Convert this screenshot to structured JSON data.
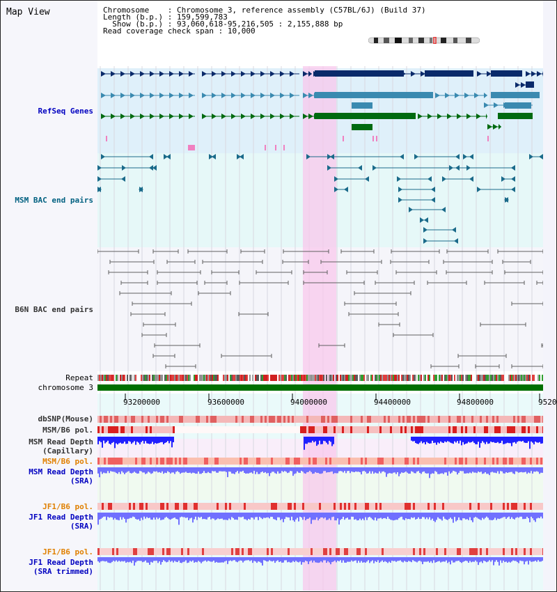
{
  "header": {
    "title": "Map View",
    "chromosome_label": "Chromosome",
    "chromosome_value": "Chromosome 3, reference assembly (C57BL/6J) (Build 37)",
    "length_label": "Length (b.p.)",
    "length_value": "159,599,783",
    "show_label": "Show (b.p.)",
    "show_value": "93,060,618-95,216,505 : 2,155,888 bp",
    "coverage_label": "Read coverage check span",
    "coverage_value": "10,000"
  },
  "tracks": {
    "refseq": "RefSeq Genes",
    "msm_bac": "MSM BAC end pairs",
    "b6n_bac": "B6N BAC end pairs",
    "repeat": "Repeat",
    "chromosome": "chromosome 3",
    "dbsnp": "dbSNP(Mouse)",
    "msm_b6_pol_1": "MSM/B6 pol.",
    "msm_depth_cap_1": "MSM Read Depth",
    "msm_depth_cap_2": "(Capillary)",
    "msm_b6_pol_2": "MSM/B6 pol.",
    "msm_depth_sra_1": "MSM Read Depth",
    "msm_depth_sra_2": "(SRA)",
    "jf1_b6_pol_1": "JF1/B6 pol.",
    "jf1_depth_sra_1": "JF1 Read Depth",
    "jf1_depth_sra_2": "(SRA)",
    "jf1_b6_pol_2": "JF1/B6 pol.",
    "jf1_depth_trim_1": "JF1 Read Depth",
    "jf1_depth_trim_2": "(SRA trimmed)"
  },
  "axis": {
    "ticks": [
      "93200000",
      "93600000",
      "94000000",
      "94400000",
      "94800000",
      "9520"
    ]
  },
  "colors": {
    "gene_dark": "#0a2a6a",
    "gene_mid": "#3a8ab0",
    "gene_green": "#006a10",
    "highlight": "#f8c8ec",
    "chrom_bar": "#007000",
    "depth_capillary": "#2020ff",
    "depth_sra": "#7070ff"
  }
}
